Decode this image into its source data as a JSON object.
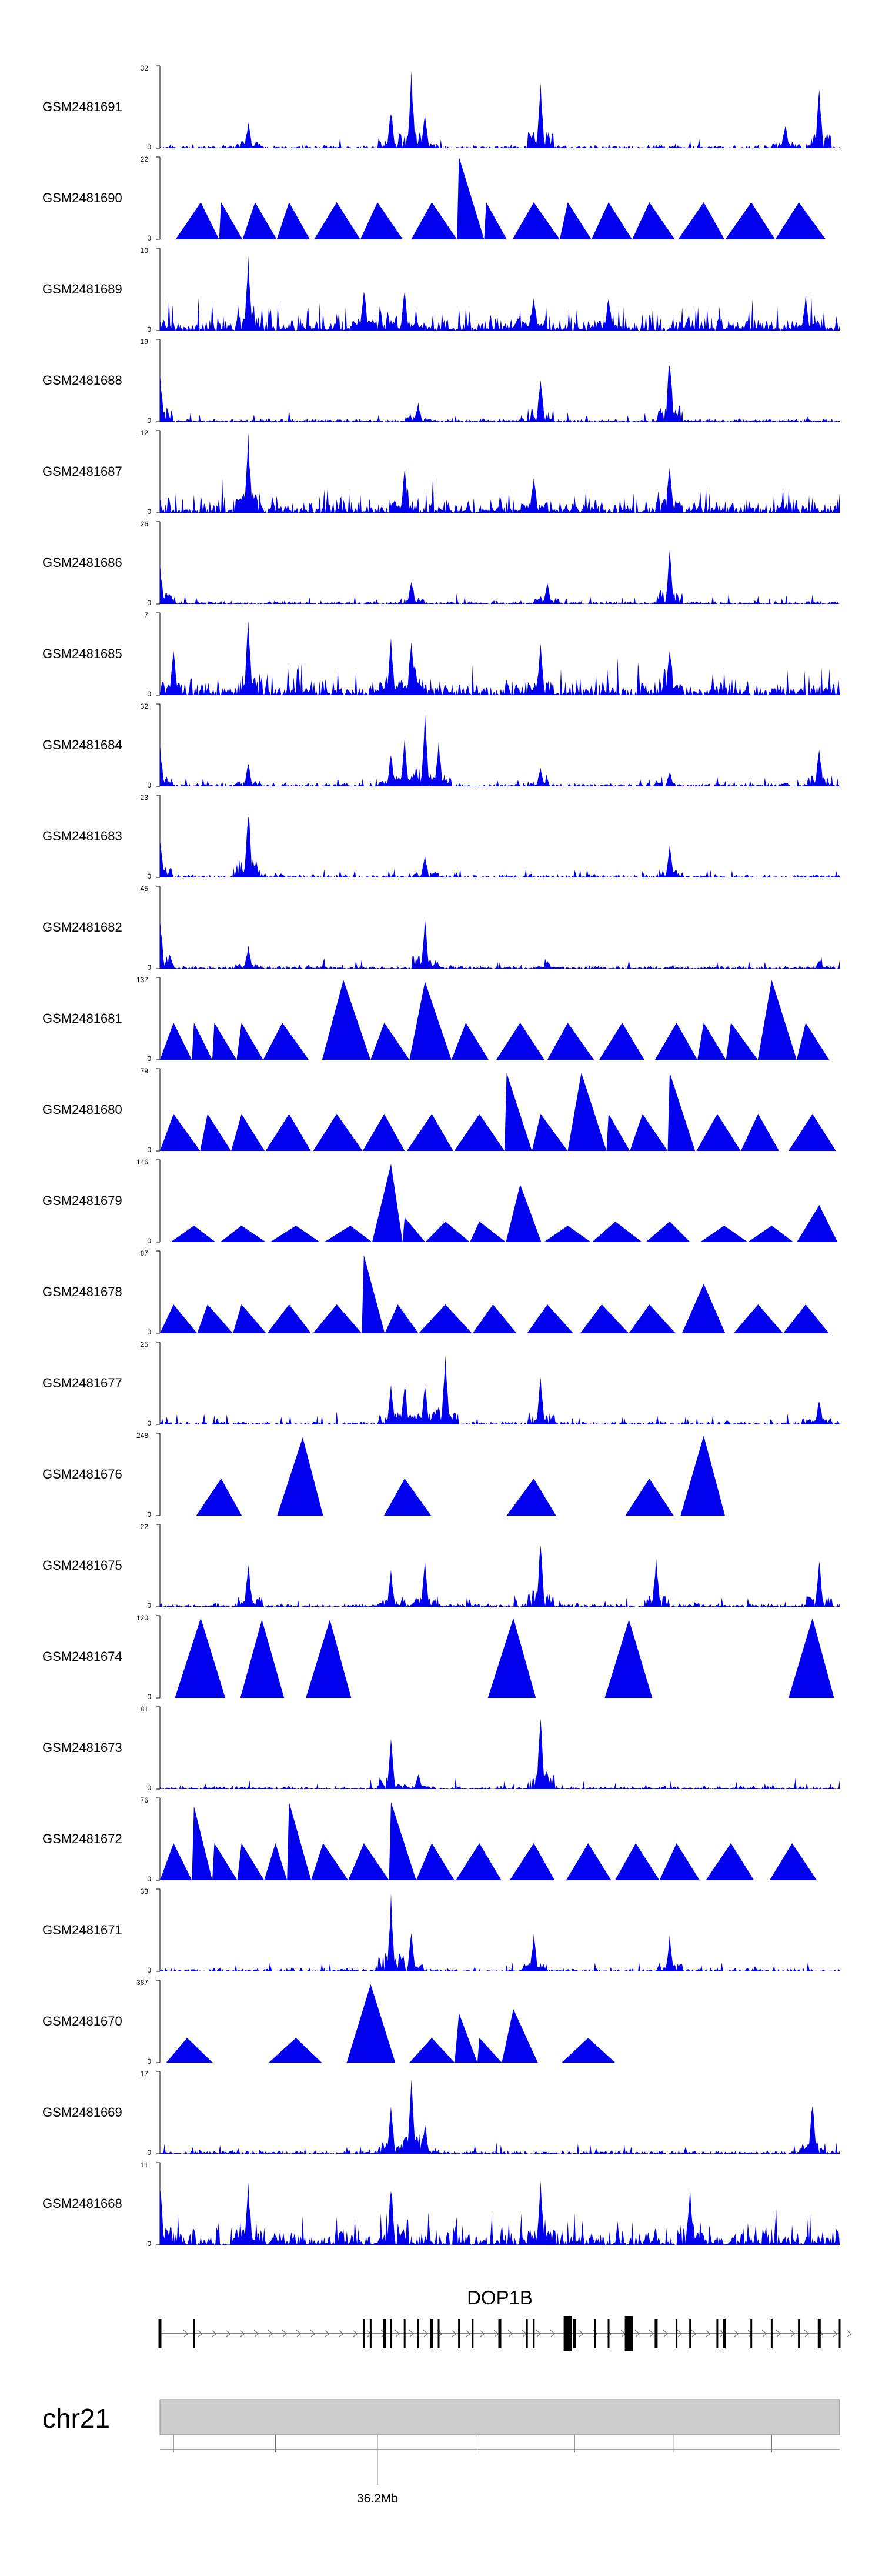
{
  "chart_data": {
    "type": "area",
    "title": "",
    "chromosome": "chr21",
    "gene_label": "DOP1B",
    "axis_tick_label": "36.2Mb",
    "fill_color": "#0000ee",
    "track_bg_color": "#ffffff",
    "ideogram_color": "#cccccc",
    "baseline_label": "0",
    "tracks": [
      {
        "name": "GSM2481691",
        "ymax": "32",
        "style": "dense",
        "peaks": [
          [
            0.13,
            0.35
          ],
          [
            0.34,
            0.5
          ],
          [
            0.37,
            1.0
          ],
          [
            0.39,
            0.45
          ],
          [
            0.56,
            0.85
          ],
          [
            0.92,
            0.35
          ],
          [
            0.97,
            0.8
          ]
        ]
      },
      {
        "name": "GSM2481690",
        "ymax": "22",
        "style": "sparse",
        "peaks": [
          [
            0.06,
            0.45
          ],
          [
            0.09,
            0.45
          ],
          [
            0.14,
            0.45
          ],
          [
            0.19,
            0.45
          ],
          [
            0.26,
            0.45
          ],
          [
            0.32,
            0.45
          ],
          [
            0.4,
            0.45
          ],
          [
            0.44,
            1.0
          ],
          [
            0.48,
            0.45
          ],
          [
            0.55,
            0.45
          ],
          [
            0.6,
            0.45
          ],
          [
            0.66,
            0.45
          ],
          [
            0.72,
            0.45
          ],
          [
            0.8,
            0.45
          ],
          [
            0.87,
            0.45
          ],
          [
            0.94,
            0.45
          ]
        ]
      },
      {
        "name": "GSM2481689",
        "ymax": "10",
        "style": "noisy",
        "peaks": [
          [
            0.13,
            1.0
          ],
          [
            0.3,
            0.6
          ],
          [
            0.36,
            0.55
          ],
          [
            0.55,
            0.5
          ],
          [
            0.66,
            0.5
          ],
          [
            0.95,
            0.5
          ]
        ]
      },
      {
        "name": "GSM2481688",
        "ymax": "19",
        "style": "dense",
        "peaks": [
          [
            0.0,
            0.7
          ],
          [
            0.38,
            0.25
          ],
          [
            0.56,
            0.65
          ],
          [
            0.75,
            0.9
          ]
        ]
      },
      {
        "name": "GSM2481687",
        "ymax": "12",
        "style": "noisy",
        "peaks": [
          [
            0.13,
            1.0
          ],
          [
            0.36,
            0.6
          ],
          [
            0.55,
            0.55
          ],
          [
            0.75,
            0.7
          ]
        ]
      },
      {
        "name": "GSM2481686",
        "ymax": "26",
        "style": "dense",
        "peaks": [
          [
            0.0,
            0.55
          ],
          [
            0.37,
            0.35
          ],
          [
            0.57,
            0.3
          ],
          [
            0.75,
            0.7
          ]
        ]
      },
      {
        "name": "GSM2481685",
        "ymax": "7",
        "style": "noisy",
        "peaks": [
          [
            0.02,
            0.7
          ],
          [
            0.13,
            1.0
          ],
          [
            0.34,
            0.8
          ],
          [
            0.37,
            0.85
          ],
          [
            0.56,
            0.75
          ],
          [
            0.75,
            0.7
          ]
        ]
      },
      {
        "name": "GSM2481684",
        "ymax": "32",
        "style": "dense",
        "peaks": [
          [
            0.0,
            0.55
          ],
          [
            0.13,
            0.3
          ],
          [
            0.34,
            0.45
          ],
          [
            0.36,
            0.65
          ],
          [
            0.39,
            0.95
          ],
          [
            0.41,
            0.6
          ],
          [
            0.56,
            0.25
          ],
          [
            0.75,
            0.2
          ],
          [
            0.97,
            0.55
          ]
        ]
      },
      {
        "name": "GSM2481683",
        "ymax": "23",
        "style": "dense",
        "peaks": [
          [
            0.0,
            0.6
          ],
          [
            0.13,
            0.95
          ],
          [
            0.39,
            0.3
          ],
          [
            0.75,
            0.4
          ]
        ]
      },
      {
        "name": "GSM2481682",
        "ymax": "45",
        "style": "dense",
        "peaks": [
          [
            0.0,
            0.75
          ],
          [
            0.13,
            0.3
          ],
          [
            0.39,
            0.65
          ],
          [
            0.57,
            0.12
          ],
          [
            0.97,
            0.12
          ]
        ]
      },
      {
        "name": "GSM2481681",
        "ymax": "137",
        "style": "sparse",
        "peaks": [
          [
            0.02,
            0.45
          ],
          [
            0.05,
            0.45
          ],
          [
            0.08,
            0.45
          ],
          [
            0.12,
            0.45
          ],
          [
            0.18,
            0.45
          ],
          [
            0.27,
            0.97
          ],
          [
            0.33,
            0.45
          ],
          [
            0.39,
            0.95
          ],
          [
            0.45,
            0.45
          ],
          [
            0.53,
            0.45
          ],
          [
            0.6,
            0.45
          ],
          [
            0.68,
            0.45
          ],
          [
            0.76,
            0.45
          ],
          [
            0.8,
            0.45
          ],
          [
            0.84,
            0.45
          ],
          [
            0.9,
            0.97
          ],
          [
            0.95,
            0.45
          ]
        ]
      },
      {
        "name": "GSM2481680",
        "ymax": "79",
        "style": "sparse",
        "peaks": [
          [
            0.02,
            0.45
          ],
          [
            0.07,
            0.45
          ],
          [
            0.12,
            0.45
          ],
          [
            0.19,
            0.45
          ],
          [
            0.26,
            0.45
          ],
          [
            0.33,
            0.45
          ],
          [
            0.4,
            0.45
          ],
          [
            0.47,
            0.45
          ],
          [
            0.51,
            0.95
          ],
          [
            0.56,
            0.45
          ],
          [
            0.62,
            0.95
          ],
          [
            0.66,
            0.45
          ],
          [
            0.71,
            0.45
          ],
          [
            0.75,
            0.95
          ],
          [
            0.82,
            0.45
          ],
          [
            0.88,
            0.45
          ],
          [
            0.96,
            0.45
          ]
        ]
      },
      {
        "name": "GSM2481679",
        "ymax": "146",
        "style": "sparse",
        "peaks": [
          [
            0.05,
            0.2
          ],
          [
            0.12,
            0.2
          ],
          [
            0.2,
            0.2
          ],
          [
            0.28,
            0.2
          ],
          [
            0.34,
            0.95
          ],
          [
            0.36,
            0.3
          ],
          [
            0.42,
            0.25
          ],
          [
            0.47,
            0.25
          ],
          [
            0.53,
            0.7
          ],
          [
            0.6,
            0.2
          ],
          [
            0.67,
            0.25
          ],
          [
            0.75,
            0.25
          ],
          [
            0.83,
            0.2
          ],
          [
            0.9,
            0.2
          ],
          [
            0.97,
            0.45
          ]
        ]
      },
      {
        "name": "GSM2481678",
        "ymax": "87",
        "style": "sparse",
        "peaks": [
          [
            0.02,
            0.35
          ],
          [
            0.07,
            0.35
          ],
          [
            0.12,
            0.35
          ],
          [
            0.19,
            0.35
          ],
          [
            0.26,
            0.35
          ],
          [
            0.3,
            0.95
          ],
          [
            0.35,
            0.35
          ],
          [
            0.42,
            0.35
          ],
          [
            0.49,
            0.35
          ],
          [
            0.57,
            0.35
          ],
          [
            0.65,
            0.35
          ],
          [
            0.72,
            0.35
          ],
          [
            0.8,
            0.6
          ],
          [
            0.88,
            0.35
          ],
          [
            0.95,
            0.35
          ]
        ]
      },
      {
        "name": "GSM2481677",
        "ymax": "25",
        "style": "dense",
        "peaks": [
          [
            0.34,
            0.5
          ],
          [
            0.36,
            0.6
          ],
          [
            0.39,
            0.55
          ],
          [
            0.42,
            0.9
          ],
          [
            0.56,
            0.6
          ],
          [
            0.97,
            0.35
          ]
        ]
      },
      {
        "name": "GSM2481676",
        "ymax": "248",
        "style": "sparse",
        "peaks": [
          [
            0.09,
            0.45
          ],
          [
            0.21,
            0.95
          ],
          [
            0.36,
            0.45
          ],
          [
            0.55,
            0.45
          ],
          [
            0.72,
            0.45
          ],
          [
            0.8,
            0.97
          ]
        ]
      },
      {
        "name": "GSM2481675",
        "ymax": "22",
        "style": "dense",
        "peaks": [
          [
            0.13,
            0.55
          ],
          [
            0.34,
            0.5
          ],
          [
            0.39,
            0.6
          ],
          [
            0.56,
            0.9
          ],
          [
            0.73,
            0.65
          ],
          [
            0.97,
            0.6
          ]
        ]
      },
      {
        "name": "GSM2481674",
        "ymax": "120",
        "style": "sparse",
        "peaks": [
          [
            0.06,
            0.97
          ],
          [
            0.15,
            0.95
          ],
          [
            0.25,
            0.95
          ],
          [
            0.52,
            0.97
          ],
          [
            0.69,
            0.95
          ],
          [
            0.96,
            0.97
          ]
        ]
      },
      {
        "name": "GSM2481673",
        "ymax": "81",
        "style": "dense",
        "peaks": [
          [
            0.34,
            0.7
          ],
          [
            0.38,
            0.2
          ],
          [
            0.56,
            0.95
          ]
        ]
      },
      {
        "name": "GSM2481672",
        "ymax": "76",
        "style": "sparse",
        "peaks": [
          [
            0.02,
            0.45
          ],
          [
            0.05,
            0.9
          ],
          [
            0.08,
            0.45
          ],
          [
            0.12,
            0.45
          ],
          [
            0.17,
            0.45
          ],
          [
            0.19,
            0.95
          ],
          [
            0.24,
            0.45
          ],
          [
            0.3,
            0.45
          ],
          [
            0.34,
            0.95
          ],
          [
            0.4,
            0.45
          ],
          [
            0.47,
            0.45
          ],
          [
            0.55,
            0.45
          ],
          [
            0.63,
            0.45
          ],
          [
            0.7,
            0.45
          ],
          [
            0.76,
            0.45
          ],
          [
            0.84,
            0.45
          ],
          [
            0.93,
            0.45
          ]
        ]
      },
      {
        "name": "GSM2481671",
        "ymax": "33",
        "style": "dense",
        "peaks": [
          [
            0.34,
            0.95
          ],
          [
            0.37,
            0.55
          ],
          [
            0.55,
            0.5
          ],
          [
            0.75,
            0.45
          ]
        ]
      },
      {
        "name": "GSM2481670",
        "ymax": "387",
        "style": "sparse",
        "peaks": [
          [
            0.04,
            0.3
          ],
          [
            0.2,
            0.3
          ],
          [
            0.31,
            0.95
          ],
          [
            0.4,
            0.3
          ],
          [
            0.44,
            0.6
          ],
          [
            0.47,
            0.3
          ],
          [
            0.52,
            0.65
          ],
          [
            0.63,
            0.3
          ]
        ]
      },
      {
        "name": "GSM2481669",
        "ymax": "17",
        "style": "dense",
        "peaks": [
          [
            0.34,
            0.65
          ],
          [
            0.37,
            1.0
          ],
          [
            0.39,
            0.4
          ],
          [
            0.96,
            0.7
          ]
        ]
      },
      {
        "name": "GSM2481668",
        "ymax": "11",
        "style": "noisy",
        "peaks": [
          [
            0.0,
            0.9
          ],
          [
            0.13,
            0.8
          ],
          [
            0.34,
            0.85
          ],
          [
            0.56,
            0.8
          ],
          [
            0.78,
            0.7
          ]
        ]
      }
    ],
    "gene_exons": [
      0.0,
      0.05,
      0.3,
      0.31,
      0.33,
      0.34,
      0.36,
      0.38,
      0.4,
      0.41,
      0.44,
      0.46,
      0.5,
      0.54,
      0.55,
      0.6,
      0.61,
      0.64,
      0.66,
      0.69,
      0.73,
      0.76,
      0.78,
      0.82,
      0.83,
      0.87,
      0.9,
      0.94,
      0.97,
      1.0
    ]
  }
}
